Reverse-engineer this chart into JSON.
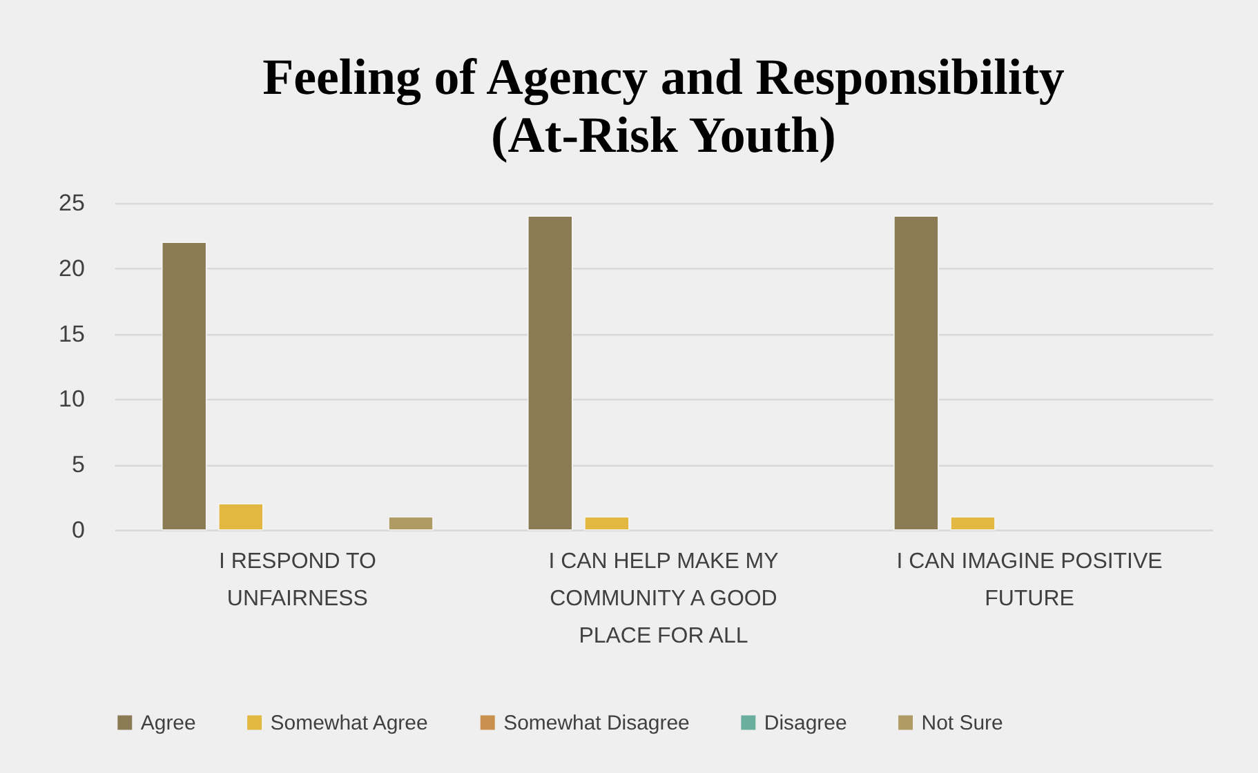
{
  "chart_data": {
    "type": "bar",
    "title": "Feeling of Agency and Responsibility (At-Risk Youth)",
    "categories": [
      "I RESPOND TO UNFAIRNESS",
      "I CAN HELP MAKE MY COMMUNITY A GOOD PLACE FOR ALL",
      "I CAN IMAGINE POSITIVE FUTURE"
    ],
    "series": [
      {
        "name": "Agree",
        "color": "#8b7b55",
        "values": [
          22,
          24,
          24
        ]
      },
      {
        "name": "Somewhat Agree",
        "color": "#e2b843",
        "values": [
          2,
          1,
          1
        ]
      },
      {
        "name": "Somewhat Disagree",
        "color": "#c98f4c",
        "values": [
          0,
          0,
          0
        ]
      },
      {
        "name": "Disagree",
        "color": "#6aae9e",
        "values": [
          0,
          0,
          0
        ]
      },
      {
        "name": "Not Sure",
        "color": "#af9c64",
        "values": [
          1,
          0,
          0
        ]
      }
    ],
    "ylim": [
      0,
      25
    ],
    "yticks": [
      0,
      5,
      10,
      15,
      20,
      25
    ],
    "grid": "y",
    "legend": "bottom"
  }
}
